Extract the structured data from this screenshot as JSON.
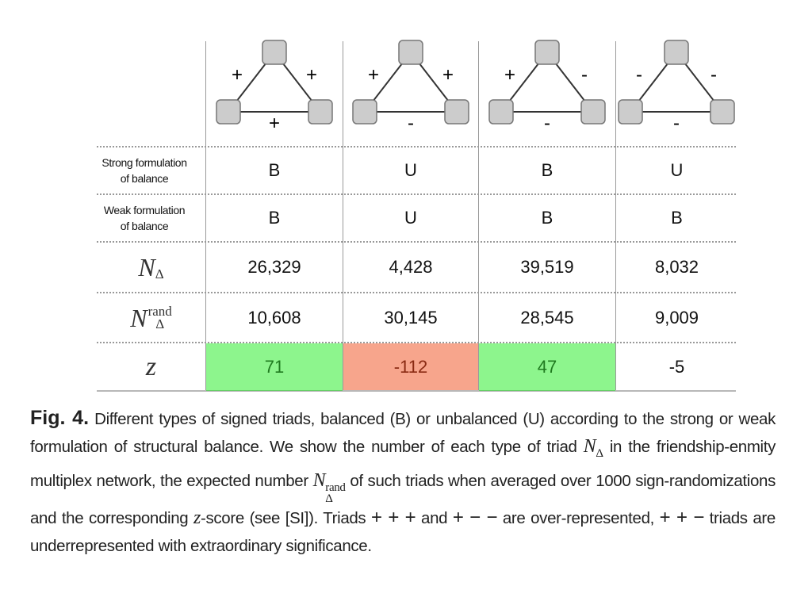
{
  "triads": [
    {
      "left": "+",
      "right": "+",
      "bottom": "+"
    },
    {
      "left": "+",
      "right": "+",
      "bottom": "-"
    },
    {
      "left": "+",
      "right": "-",
      "bottom": "-"
    },
    {
      "left": "-",
      "right": "-",
      "bottom": "-"
    }
  ],
  "rows": {
    "strong": {
      "label_line1": "Strong formulation",
      "label_line2": "of balance",
      "values": [
        "B",
        "U",
        "B",
        "U"
      ]
    },
    "weak": {
      "label_line1": "Weak formulation",
      "label_line2": "of balance",
      "values": [
        "B",
        "U",
        "B",
        "B"
      ]
    },
    "n": {
      "symbol": "N",
      "sub": "Δ",
      "values": [
        "26,329",
        "4,428",
        "39,519",
        "8,032"
      ]
    },
    "nrand": {
      "symbol": "N",
      "sub": "Δ",
      "sup": "rand",
      "values": [
        "10,608",
        "30,145",
        "28,545",
        "9,009"
      ]
    },
    "z": {
      "symbol": "z",
      "values": [
        "71",
        "-112",
        "47",
        "-5"
      ],
      "highlight": [
        "over",
        "under",
        "over",
        "none"
      ]
    }
  },
  "colors": {
    "over_bg": "#8df58d",
    "over_text": "#1f7a1f",
    "under_bg": "#f7a58c",
    "under_text": "#8a2a12",
    "node": "#cccccc"
  },
  "caption": {
    "label": "Fig. 4.",
    "t1": " Different types of signed triads, balanced (B) or unbalanced (U) according to the strong or weak formulation of structural balance. We show the number of each type of triad ",
    "m1": "N",
    "m1_sub": "Δ",
    "t2": " in the friendship-enmity multiplex network, the expected number ",
    "m2": "N",
    "m2_sub": "Δ",
    "m2_sup": "rand",
    "t3": " of such triads when averaged over 1000 sign-randomizations and the corresponding ",
    "m3": "z",
    "t4": "-score (see [SI]). Triads ",
    "s1": "+ + +",
    "t5": " and ",
    "s2": "+ − −",
    "t6": " are over-represented, ",
    "s3": "+ + −",
    "t7": " triads are underrepresented with extraordinary significance."
  }
}
